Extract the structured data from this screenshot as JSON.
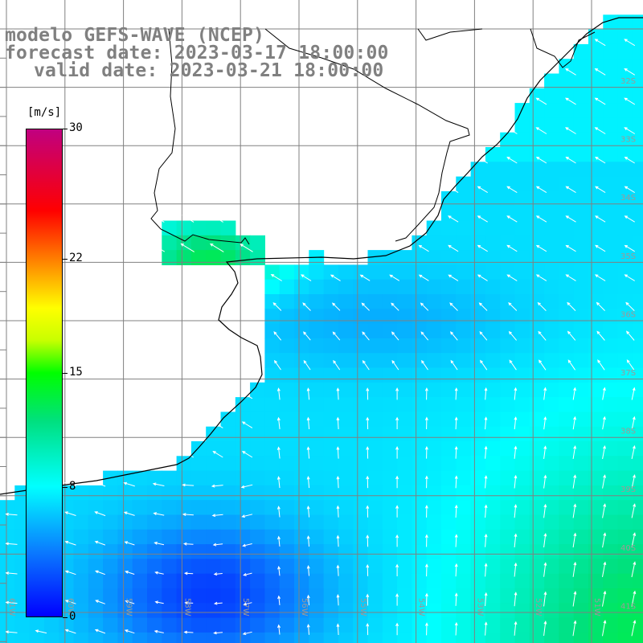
{
  "title": {
    "line1": "modelo GEFS-WAVE (NCEP)",
    "line2": "forecast date: 2023-03-17 18:00:00",
    "line3": "valid date: 2023-03-21 18:00:00"
  },
  "colorbar": {
    "units": "[m/s]",
    "ticks": [
      {
        "value": 30,
        "label": "30"
      },
      {
        "value": 22,
        "label": "22"
      },
      {
        "value": 15,
        "label": "15"
      },
      {
        "value": 8,
        "label": "8"
      },
      {
        "value": 0,
        "label": "0"
      }
    ],
    "min": 0,
    "max": 30,
    "stops": [
      {
        "v": 0,
        "c": "#0000ff"
      },
      {
        "v": 4,
        "c": "#0a7bff"
      },
      {
        "v": 8,
        "c": "#00ffff"
      },
      {
        "v": 12,
        "c": "#00e080"
      },
      {
        "v": 15,
        "c": "#00ff00"
      },
      {
        "v": 17,
        "c": "#c8ff00"
      },
      {
        "v": 19,
        "c": "#ffff00"
      },
      {
        "v": 22,
        "c": "#ff7f00"
      },
      {
        "v": 25,
        "c": "#ff0000"
      },
      {
        "v": 30,
        "c": "#c00080"
      }
    ]
  },
  "map": {
    "projection": "lat/lon",
    "lon_range": [
      -61,
      -50
    ],
    "lat_range": [
      -41,
      -30
    ],
    "variable": "wind speed (m/s) with direction arrows",
    "grid_color": "#808080",
    "coast_color": "#000000",
    "lat_labels": [
      "32S",
      "33S",
      "34S",
      "35S",
      "36S",
      "37S",
      "38S",
      "39S",
      "40S",
      "41S"
    ],
    "lon_labels": [
      "61W",
      "60W",
      "59W",
      "58W",
      "57W",
      "56W",
      "55W",
      "54W",
      "53W",
      "52W",
      "51W"
    ]
  },
  "chart_data": {
    "type": "heatmap",
    "description_fields": "approximate wind speed (m/s) over ocean cells",
    "samples": [
      {
        "lon": -58.5,
        "lat": -35.0,
        "speed": 13,
        "dir_to": "WNW"
      },
      {
        "lon": -57.5,
        "lat": -35.5,
        "speed": 11,
        "dir_to": "WNW"
      },
      {
        "lon": -56.0,
        "lat": -36.5,
        "speed": 6,
        "dir_to": "W"
      },
      {
        "lon": -54.0,
        "lat": -38.0,
        "speed": 7,
        "dir_to": "N"
      },
      {
        "lon": -52.0,
        "lat": -39.5,
        "speed": 9,
        "dir_to": "N"
      },
      {
        "lon": -50.5,
        "lat": -40.0,
        "speed": 11,
        "dir_to": "N"
      },
      {
        "lon": -57.0,
        "lat": -40.5,
        "speed": 3,
        "dir_to": "W"
      },
      {
        "lon": -60.0,
        "lat": -39.5,
        "speed": 5,
        "dir_to": "SW"
      },
      {
        "lon": -52.0,
        "lat": -33.0,
        "speed": 8,
        "dir_to": "NW"
      }
    ]
  }
}
